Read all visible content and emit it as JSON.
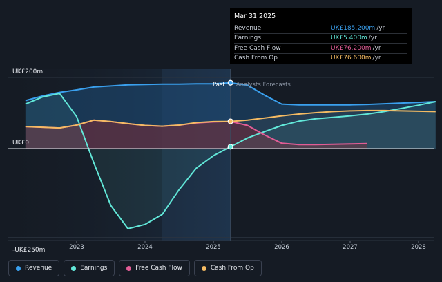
{
  "chart_data": {
    "type": "line",
    "y_axis_labels": [
      "UK£200m",
      "UK£0",
      "-UK£250m"
    ],
    "x_ticks": [
      "2023",
      "2024",
      "2025",
      "2026",
      "2027",
      "2028"
    ],
    "ylim": [
      -250,
      200
    ],
    "xlim": [
      2022.25,
      2028.25
    ],
    "divider_x": 2025.25,
    "past_label": "Past",
    "forecast_label": "Analysts Forecasts",
    "series": [
      {
        "name": "Revenue",
        "color": "#3aa0ee",
        "x": [
          2022.25,
          2022.5,
          2022.75,
          2023.0,
          2023.25,
          2023.5,
          2023.75,
          2024.0,
          2024.25,
          2024.5,
          2024.75,
          2025.0,
          2025.25,
          2025.5,
          2025.75,
          2026.0,
          2026.25,
          2026.5,
          2026.75,
          2027.0,
          2027.25,
          2027.5,
          2027.75,
          2028.0,
          2028.25
        ],
        "values": [
          135,
          148,
          158,
          165,
          173,
          176,
          179,
          180,
          181,
          181,
          182,
          182,
          185,
          178,
          150,
          125,
          123,
          123,
          123,
          123,
          124,
          126,
          128,
          130,
          132
        ]
      },
      {
        "name": "Earnings",
        "color": "#62e8d9",
        "x": [
          2022.25,
          2022.5,
          2022.75,
          2023.0,
          2023.25,
          2023.5,
          2023.75,
          2024.0,
          2024.25,
          2024.5,
          2024.75,
          2025.0,
          2025.25,
          2025.5,
          2025.75,
          2026.0,
          2026.25,
          2026.5,
          2026.75,
          2027.0,
          2027.25,
          2027.5,
          2027.75,
          2028.0,
          2028.25
        ],
        "values": [
          125,
          145,
          155,
          90,
          -40,
          -160,
          -225,
          -213,
          -185,
          -115,
          -55,
          -20,
          5.4,
          30,
          48,
          65,
          77,
          84,
          88,
          92,
          97,
          104,
          113,
          122,
          132
        ]
      },
      {
        "name": "Free Cash Flow",
        "color": "#e25d96",
        "x": [
          2022.25,
          2022.5,
          2022.75,
          2023.0,
          2023.25,
          2023.5,
          2023.75,
          2024.0,
          2024.25,
          2024.5,
          2024.75,
          2025.0,
          2025.25,
          2025.5,
          2025.75,
          2026.0,
          2026.25,
          2026.5,
          2026.75,
          2027.0,
          2027.25
        ],
        "values": [
          62,
          60,
          58,
          66,
          80,
          76,
          70,
          65,
          63,
          66,
          72,
          75,
          76.2,
          65,
          38,
          15,
          11,
          11,
          12,
          13,
          14
        ]
      },
      {
        "name": "Cash From Op",
        "color": "#f5bb63",
        "x": [
          2022.25,
          2022.5,
          2022.75,
          2023.0,
          2023.25,
          2023.5,
          2023.75,
          2024.0,
          2024.25,
          2024.5,
          2024.75,
          2025.0,
          2025.25,
          2025.5,
          2025.75,
          2026.0,
          2026.25,
          2026.5,
          2026.75,
          2027.0,
          2027.25,
          2027.5,
          2027.75,
          2028.0,
          2028.25
        ],
        "values": [
          62,
          60,
          58,
          66,
          80,
          76,
          70,
          65,
          63,
          66,
          73,
          76,
          76.6,
          80,
          86,
          92,
          97,
          101,
          104,
          106,
          107,
          107,
          106,
          105,
          104
        ]
      }
    ]
  },
  "tooltip": {
    "date": "Mar 31 2025",
    "rows": [
      {
        "label": "Revenue",
        "value": "UK£185.200m",
        "unit": "/yr",
        "color": "#3aa0ee"
      },
      {
        "label": "Earnings",
        "value": "UK£5.400m",
        "unit": "/yr",
        "color": "#62e8d9"
      },
      {
        "label": "Free Cash Flow",
        "value": "UK£76.200m",
        "unit": "/yr",
        "color": "#e25d96"
      },
      {
        "label": "Cash From Op",
        "value": "UK£76.600m",
        "unit": "/yr",
        "color": "#f5bb63"
      }
    ]
  },
  "legend": [
    {
      "label": "Revenue",
      "color": "#3aa0ee"
    },
    {
      "label": "Earnings",
      "color": "#62e8d9"
    },
    {
      "label": "Free Cash Flow",
      "color": "#e25d96"
    },
    {
      "label": "Cash From Op",
      "color": "#f5bb63"
    }
  ]
}
